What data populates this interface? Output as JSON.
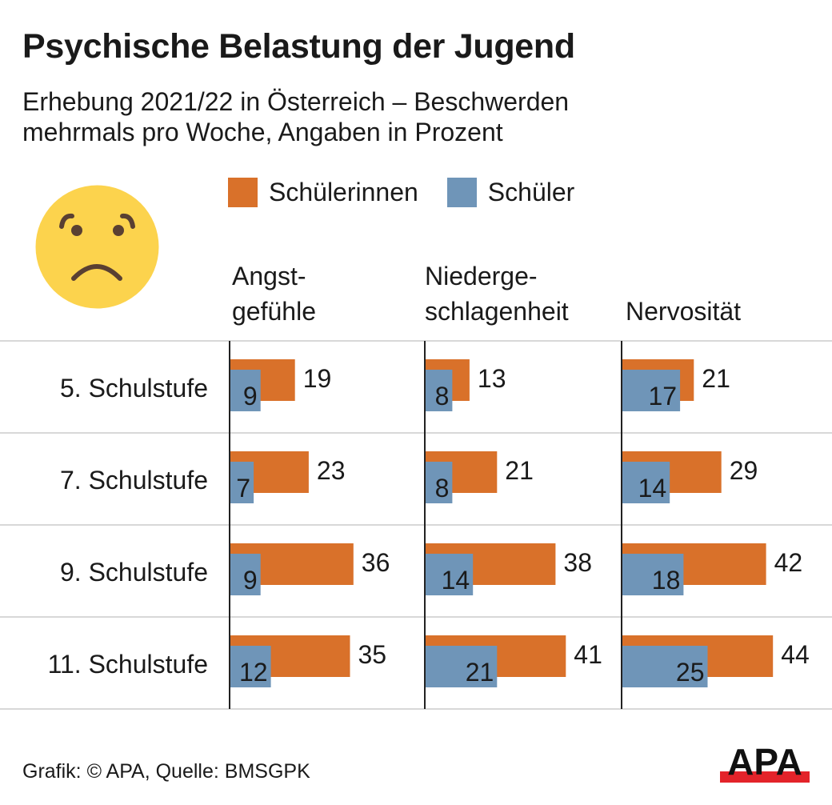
{
  "title": "Psychische Belastung der Jugend",
  "subtitle_line1": "Erhebung 2021/22 in Österreich – Beschwerden",
  "subtitle_line2": "mehrmals pro Woche, Angaben in Prozent",
  "icon": "sad-face-emoji-icon",
  "footer": "Grafik: © APA, Quelle: BMSGPK",
  "logo_text": "APA",
  "colors": {
    "female": "#d9712a",
    "male": "#6f95b8",
    "logo_red": "#e3232a",
    "emoji": "#fcd34d",
    "emoji_features": "#5a4032"
  },
  "chart_data": {
    "type": "bar",
    "orientation": "horizontal",
    "title": "Psychische Belastung der Jugend",
    "subtitle": "Erhebung 2021/22 in Österreich – Beschwerden mehrmals pro Woche, Angaben in Prozent",
    "unit": "%",
    "legend": [
      "Schülerinnen",
      "Schüler"
    ],
    "legend_position": "top",
    "categories": [
      "5. Schulstufe",
      "7. Schulstufe",
      "9. Schulstufe",
      "11. Schulstufe"
    ],
    "panels": [
      {
        "title_line1": "Angst-",
        "title_line2": "gefühle",
        "series": [
          {
            "name": "Schülerinnen",
            "values": [
              19,
              23,
              36,
              35
            ]
          },
          {
            "name": "Schüler",
            "values": [
              9,
              7,
              9,
              12
            ]
          }
        ]
      },
      {
        "title_line1": "Niederge-",
        "title_line2": "schlagenheit",
        "series": [
          {
            "name": "Schülerinnen",
            "values": [
              13,
              21,
              38,
              41
            ]
          },
          {
            "name": "Schüler",
            "values": [
              8,
              8,
              14,
              21
            ]
          }
        ]
      },
      {
        "title_line1": "",
        "title_line2": "Nervosität",
        "series": [
          {
            "name": "Schülerinnen",
            "values": [
              21,
              29,
              42,
              44
            ]
          },
          {
            "name": "Schüler",
            "values": [
              17,
              14,
              18,
              25
            ]
          }
        ]
      }
    ],
    "xlim": [
      0,
      50
    ],
    "grid": false
  }
}
